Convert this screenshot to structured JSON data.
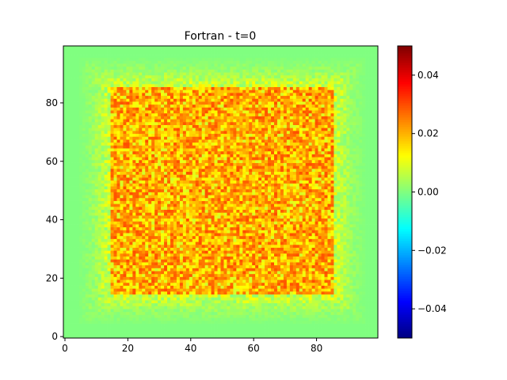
{
  "chart_data": {
    "type": "heatmap",
    "title": "Fortran - t=0",
    "xlabel": "",
    "ylabel": "",
    "grid_size": [
      100,
      100
    ],
    "xlim": [
      -0.5,
      99.5
    ],
    "ylim": [
      -0.5,
      99.5
    ],
    "x_ticks": [
      0,
      20,
      40,
      60,
      80
    ],
    "y_ticks": [
      0,
      20,
      40,
      60,
      80
    ],
    "x_tick_labels": [
      "0",
      "20",
      "40",
      "60",
      "80"
    ],
    "y_tick_labels": [
      "0",
      "20",
      "40",
      "60",
      "80"
    ],
    "colormap": "jet",
    "clim": [
      -0.05,
      0.05
    ],
    "colorbar_ticks": [
      -0.04,
      -0.02,
      0.0,
      0.02,
      0.04
    ],
    "colorbar_tick_labels": [
      "−0.04",
      "−0.02",
      "0.00",
      "0.02",
      "0.04"
    ],
    "field": {
      "description": "non-negative noisy field, ~0 near borders, rising to ~0.01-0.02 in ring x,y in [10,90], fluctuating up to ~0.03 inside [15,85]",
      "background_value": 0.0,
      "outer_band_range": [
        10,
        90
      ],
      "inner_square_range": [
        15,
        85
      ],
      "outer_band_values": [
        0.0,
        0.015
      ],
      "inner_square_values": [
        0.008,
        0.03
      ]
    },
    "grid": false
  }
}
